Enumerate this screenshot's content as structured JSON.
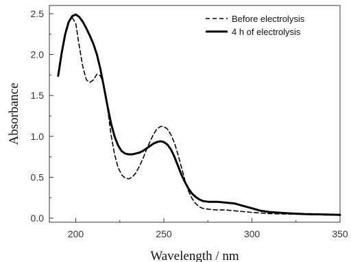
{
  "chart_data": {
    "type": "line",
    "title": "",
    "xlabel": "Wavelength / nm",
    "ylabel": "Absorbance",
    "xlim": [
      185,
      350
    ],
    "ylim": [
      -0.05,
      2.6
    ],
    "x_ticks": [
      200,
      250,
      300,
      350
    ],
    "y_ticks": [
      0.0,
      0.5,
      1.0,
      1.5,
      2.0,
      2.5
    ],
    "x_tick_labels": [
      "200",
      "250",
      "300",
      "350"
    ],
    "y_tick_labels": [
      "0.0",
      "0.5",
      "1.0",
      "1.5",
      "2.0",
      "2.5"
    ],
    "grid": false,
    "legend_position": "top-right",
    "colors": {
      "series": "#000000",
      "axis": "#333333"
    },
    "series": [
      {
        "name": "Before electrolysis",
        "line_style": "dashed",
        "x": [
          198,
          200,
          202,
          204,
          206,
          208,
          210,
          212,
          214,
          216,
          218,
          220,
          222,
          224,
          226,
          228,
          230,
          232,
          234,
          236,
          238,
          240,
          242,
          244,
          246,
          248,
          250,
          252,
          254,
          256,
          258,
          260,
          262,
          264,
          266,
          268,
          270,
          272,
          275,
          280,
          285,
          290,
          295,
          300,
          310,
          320,
          330,
          340,
          350
        ],
        "y": [
          2.45,
          2.38,
          2.1,
          1.85,
          1.69,
          1.66,
          1.69,
          1.76,
          1.74,
          1.62,
          1.35,
          1.02,
          0.78,
          0.62,
          0.53,
          0.49,
          0.48,
          0.5,
          0.55,
          0.63,
          0.72,
          0.83,
          0.93,
          1.02,
          1.09,
          1.12,
          1.12,
          1.09,
          1.02,
          0.92,
          0.78,
          0.62,
          0.46,
          0.33,
          0.24,
          0.18,
          0.14,
          0.12,
          0.11,
          0.1,
          0.1,
          0.09,
          0.08,
          0.07,
          0.055,
          0.05,
          0.045,
          0.04,
          0.035
        ]
      },
      {
        "name": "4 h of electrolysis",
        "line_style": "solid",
        "x": [
          190,
          192,
          194,
          196,
          198,
          200,
          202,
          204,
          206,
          208,
          210,
          212,
          214,
          216,
          218,
          220,
          222,
          224,
          226,
          228,
          230,
          232,
          234,
          236,
          238,
          240,
          242,
          244,
          246,
          248,
          250,
          252,
          254,
          256,
          258,
          260,
          262,
          264,
          266,
          268,
          270,
          272,
          275,
          280,
          285,
          290,
          295,
          300,
          305,
          310,
          320,
          330,
          340,
          350
        ],
        "y": [
          1.74,
          2.02,
          2.25,
          2.4,
          2.47,
          2.49,
          2.46,
          2.4,
          2.32,
          2.23,
          2.13,
          2.0,
          1.82,
          1.6,
          1.37,
          1.16,
          1.0,
          0.89,
          0.82,
          0.79,
          0.78,
          0.78,
          0.79,
          0.8,
          0.82,
          0.85,
          0.88,
          0.91,
          0.93,
          0.94,
          0.93,
          0.9,
          0.84,
          0.75,
          0.64,
          0.53,
          0.44,
          0.36,
          0.3,
          0.26,
          0.23,
          0.21,
          0.2,
          0.2,
          0.19,
          0.18,
          0.15,
          0.12,
          0.09,
          0.075,
          0.06,
          0.05,
          0.045,
          0.04
        ]
      }
    ]
  }
}
